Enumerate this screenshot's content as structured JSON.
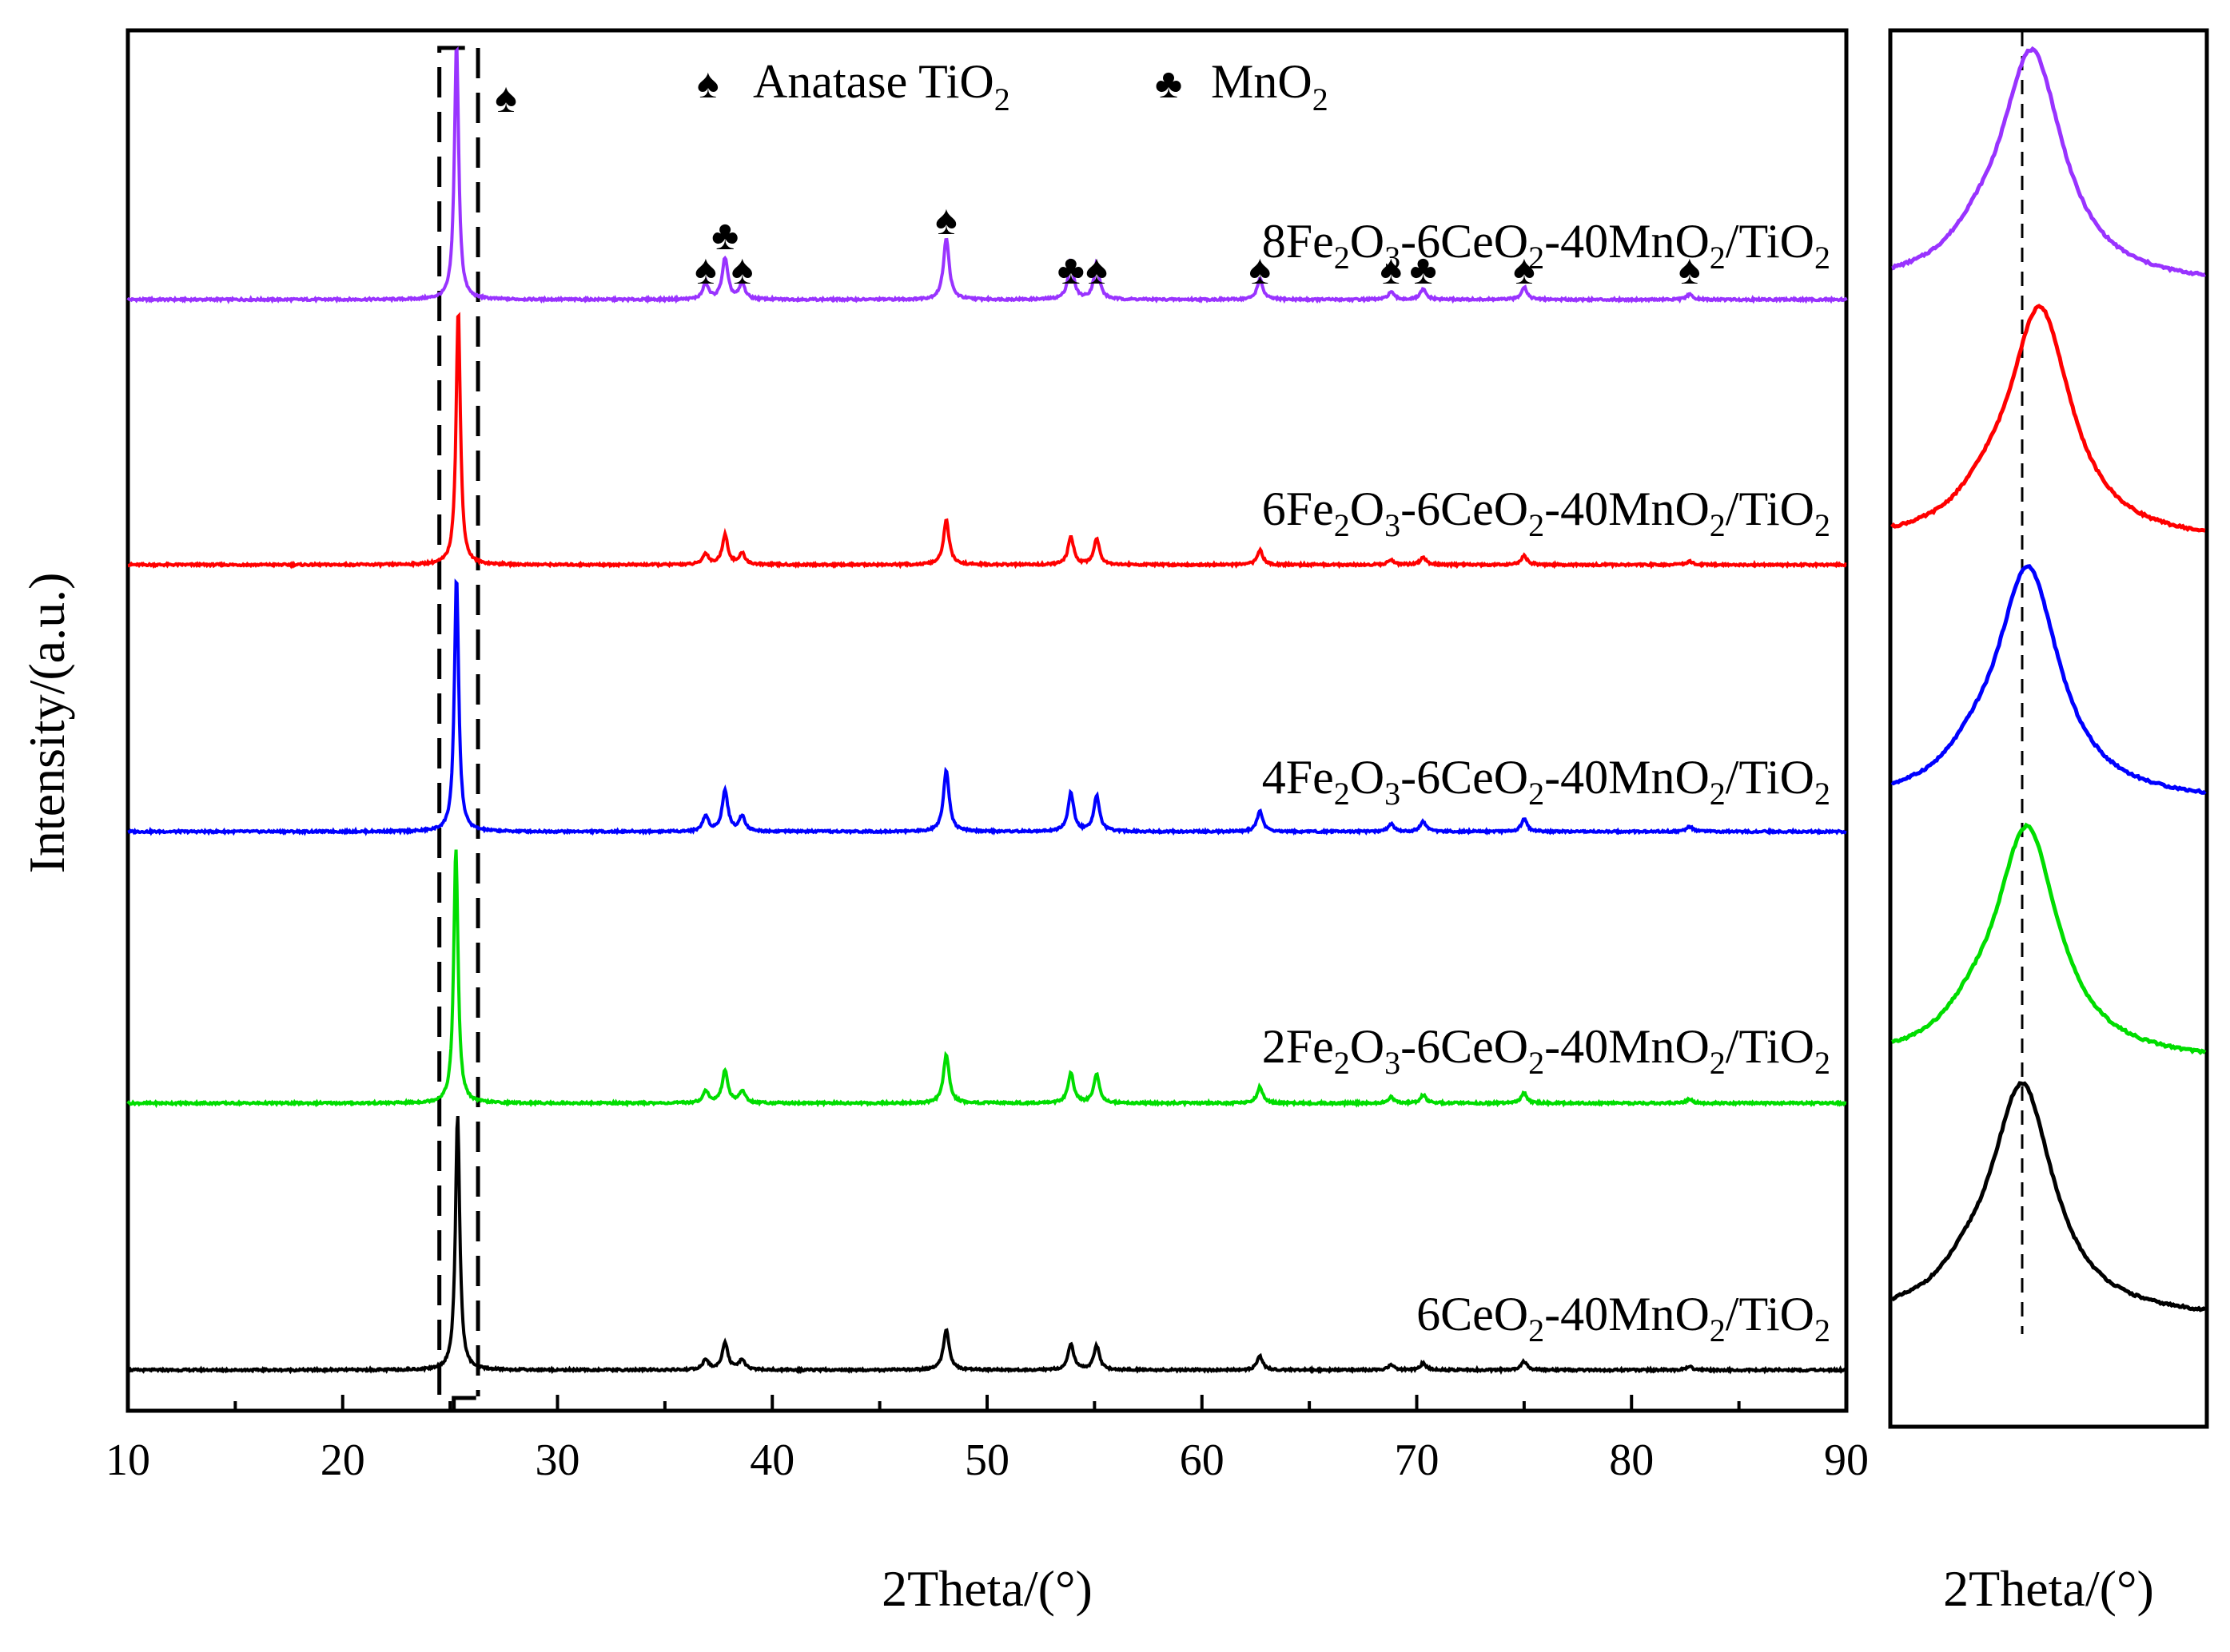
{
  "chart_data": [
    {
      "type": "line",
      "panel": "main",
      "xlabel": "2Theta/(°)",
      "ylabel": "Intensity/(a.u.)",
      "xlim": [
        10,
        90
      ],
      "xticks": [
        10,
        20,
        30,
        40,
        50,
        60,
        70,
        80,
        90
      ],
      "minor_xticks": [
        15,
        25,
        35,
        45,
        55,
        65,
        75,
        85
      ],
      "legend": {
        "position": "top-center",
        "items": [
          {
            "symbol": "♠",
            "label": "Anatase TiO",
            "sub": "2"
          },
          {
            "symbol": "♣",
            "label": "MnO",
            "sub": "2"
          }
        ]
      },
      "highlight_region": {
        "x_range": [
          24.5,
          26.3
        ],
        "style": "dashed"
      },
      "peak_positions": [
        {
          "two_theta": 25.3,
          "height": 1.0
        },
        {
          "two_theta": 36.9,
          "height": 0.06
        },
        {
          "two_theta": 37.8,
          "height": 0.16
        },
        {
          "two_theta": 38.6,
          "height": 0.06
        },
        {
          "two_theta": 48.1,
          "height": 0.24
        },
        {
          "two_theta": 53.9,
          "height": 0.15
        },
        {
          "two_theta": 55.1,
          "height": 0.14
        },
        {
          "two_theta": 62.7,
          "height": 0.08
        },
        {
          "two_theta": 68.8,
          "height": 0.03
        },
        {
          "two_theta": 70.3,
          "height": 0.04
        },
        {
          "two_theta": 75.0,
          "height": 0.05
        },
        {
          "two_theta": 82.7,
          "height": 0.02
        }
      ],
      "peak_markers": [
        {
          "two_theta": 27.6,
          "symbol": "♠",
          "level": "top"
        },
        {
          "two_theta": 36.9,
          "symbol": "♠",
          "level": "low"
        },
        {
          "two_theta": 37.8,
          "symbol": "♣",
          "level": "high"
        },
        {
          "two_theta": 38.6,
          "symbol": "♠",
          "level": "low"
        },
        {
          "two_theta": 48.1,
          "symbol": "♠",
          "level": "high"
        },
        {
          "two_theta": 53.9,
          "symbol": "♣",
          "level": "low"
        },
        {
          "two_theta": 55.1,
          "symbol": "♠",
          "level": "low"
        },
        {
          "two_theta": 62.7,
          "symbol": "♠",
          "level": "low"
        },
        {
          "two_theta": 68.8,
          "symbol": "♠",
          "level": "low"
        },
        {
          "two_theta": 70.3,
          "symbol": "♣",
          "level": "low"
        },
        {
          "two_theta": 75.0,
          "symbol": "♠",
          "level": "low"
        },
        {
          "two_theta": 82.7,
          "symbol": "♠",
          "level": "low"
        }
      ],
      "series": [
        {
          "name": "8Fe2O3-6CeO2-40MnO2/TiO2",
          "label_parts": [
            "8Fe",
            "2",
            "O",
            "3",
            "-6CeO",
            "2",
            "-40MnO",
            "2",
            "/TiO",
            "2"
          ],
          "color": "#9933ff",
          "baseline": 4,
          "peak_scale": 1.0,
          "shift": 0.0
        },
        {
          "name": "6Fe2O3-6CeO2-40MnO2/TiO2",
          "label_parts": [
            "6Fe",
            "2",
            "O",
            "3",
            "-6CeO",
            "2",
            "-40MnO",
            "2",
            "/TiO",
            "2"
          ],
          "color": "#ff0000",
          "baseline": 3,
          "peak_scale": 0.72,
          "shift": 0.08
        },
        {
          "name": "4Fe2O3-6CeO2-40MnO2/TiO2",
          "label_parts": [
            "4Fe",
            "2",
            "O",
            "3",
            "-6CeO",
            "2",
            "-40MnO",
            "2",
            "/TiO",
            "2"
          ],
          "color": "#0000ff",
          "baseline": 2,
          "peak_scale": 1.0,
          "shift": 0.0
        },
        {
          "name": "2Fe2O3-6CeO2-40MnO2/TiO2",
          "label_parts": [
            "2Fe",
            "2",
            "O",
            "3",
            "-6CeO",
            "2",
            "-40MnO",
            "2",
            "/TiO",
            "2"
          ],
          "color": "#00dd00",
          "baseline": 1,
          "peak_scale": 0.79,
          "shift": -0.03
        },
        {
          "name": "6CeO2-40MnO2/TiO2",
          "label_parts": [
            "6CeO",
            "2",
            "-40MnO",
            "2",
            "/TiO",
            "2"
          ],
          "color": "#000000",
          "baseline": 0,
          "peak_scale": 0.67,
          "shift": 0.05
        }
      ]
    },
    {
      "type": "line",
      "panel": "inset",
      "xlabel": "2Theta/(°)",
      "reference_line": "dashed",
      "series": [
        {
          "name": "8Fe2O3-6CeO2-40MnO2/TiO2",
          "color": "#9933ff",
          "peak_offset": 0.3
        },
        {
          "name": "6Fe2O3-6CeO2-40MnO2/TiO2",
          "color": "#ff0000",
          "peak_offset": 0.55
        },
        {
          "name": "4Fe2O3-6CeO2-40MnO2/TiO2",
          "color": "#0000ff",
          "peak_offset": 0.18
        },
        {
          "name": "2Fe2O3-6CeO2-40MnO2/TiO2",
          "color": "#00dd00",
          "peak_offset": 0.15
        },
        {
          "name": "6CeO2-40MnO2/TiO2",
          "color": "#000000",
          "peak_offset": 0.0
        }
      ]
    }
  ]
}
